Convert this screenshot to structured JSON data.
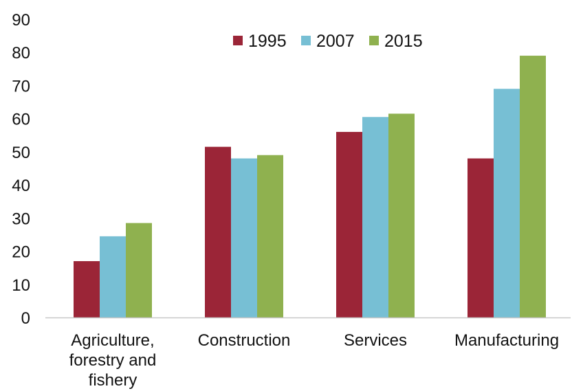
{
  "chart_data": {
    "type": "bar",
    "categories": [
      [
        "Agriculture,",
        "forestry and",
        "fishery"
      ],
      [
        "Construction"
      ],
      [
        "Services"
      ],
      [
        "Manufacturing"
      ]
    ],
    "series": [
      {
        "name": "1995",
        "color": "#9b2537",
        "values": [
          17,
          51.5,
          56,
          48
        ]
      },
      {
        "name": "2007",
        "color": "#77bfd4",
        "values": [
          24.5,
          48,
          60.5,
          69
        ]
      },
      {
        "name": "2015",
        "color": "#8fb14f",
        "values": [
          28.5,
          49,
          61.5,
          79
        ]
      }
    ],
    "title": "",
    "xlabel": "",
    "ylabel": "",
    "ylim": [
      0,
      90
    ],
    "yticks": [
      "0",
      "10",
      "20",
      "30",
      "40",
      "50",
      "60",
      "70",
      "80",
      "90"
    ],
    "grid": false,
    "legend_position": "top-center"
  }
}
